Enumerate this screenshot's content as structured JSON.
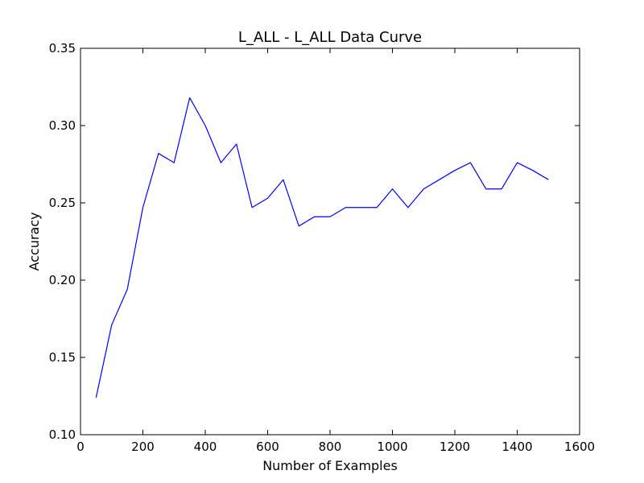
{
  "chart_data": {
    "type": "line",
    "title": "L_ALL - L_ALL Data Curve",
    "xlabel": "Number of Examples",
    "ylabel": "Accuracy",
    "xlim": [
      0,
      1600
    ],
    "ylim": [
      0.1,
      0.35
    ],
    "x_ticks": [
      "0",
      "200",
      "400",
      "600",
      "800",
      "1000",
      "1200",
      "1400",
      "1600"
    ],
    "y_ticks": [
      "0.10",
      "0.15",
      "0.20",
      "0.25",
      "0.30",
      "0.35"
    ],
    "grid": false,
    "color": "#0000ff",
    "series": [
      {
        "x": [
          50,
          100,
          150,
          200,
          250,
          300,
          350,
          400,
          450,
          500,
          550,
          600,
          650,
          700,
          750,
          800,
          850,
          900,
          950,
          1000,
          1050,
          1100,
          1150,
          1200,
          1250,
          1300,
          1350,
          1400,
          1450,
          1500
        ],
        "values": [
          0.124,
          0.171,
          0.194,
          0.247,
          0.282,
          0.276,
          0.318,
          0.3,
          0.276,
          0.288,
          0.247,
          0.253,
          0.265,
          0.235,
          0.241,
          0.241,
          0.247,
          0.247,
          0.247,
          0.259,
          0.247,
          0.259,
          0.265,
          0.271,
          0.276,
          0.259,
          0.259,
          0.276,
          0.271,
          0.265
        ]
      }
    ]
  }
}
